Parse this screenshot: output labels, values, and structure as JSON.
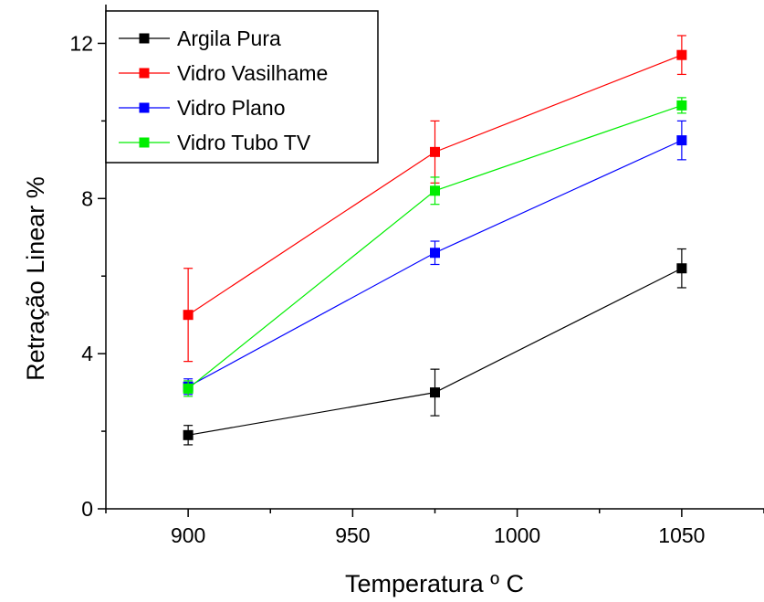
{
  "chart_data": {
    "type": "line",
    "xlabel": "Temperatura º C",
    "ylabel": "Retração Linear %",
    "xlim": [
      875,
      1075
    ],
    "ylim": [
      0,
      13
    ],
    "x_ticks": [
      900,
      950,
      1000,
      1050
    ],
    "y_ticks": [
      0,
      4,
      8,
      12
    ],
    "legend_position": "top-left",
    "grid": false,
    "x": [
      900,
      975,
      1050
    ],
    "series": [
      {
        "name": "Argila Pura",
        "color": "#000000",
        "values": [
          1.9,
          3.0,
          6.2
        ],
        "errors": [
          0.25,
          0.6,
          0.5
        ]
      },
      {
        "name": "Vidro Vasilhame",
        "color": "#ff0000",
        "values": [
          5.0,
          9.2,
          11.7
        ],
        "errors": [
          1.2,
          0.8,
          0.5
        ]
      },
      {
        "name": "Vidro Plano",
        "color": "#0000ff",
        "values": [
          3.15,
          6.6,
          9.5
        ],
        "errors": [
          0.2,
          0.3,
          0.5
        ]
      },
      {
        "name": "Vidro Tubo TV",
        "color": "#00ee00",
        "values": [
          3.1,
          8.2,
          10.4
        ],
        "errors": [
          0.2,
          0.35,
          0.2
        ]
      }
    ]
  }
}
